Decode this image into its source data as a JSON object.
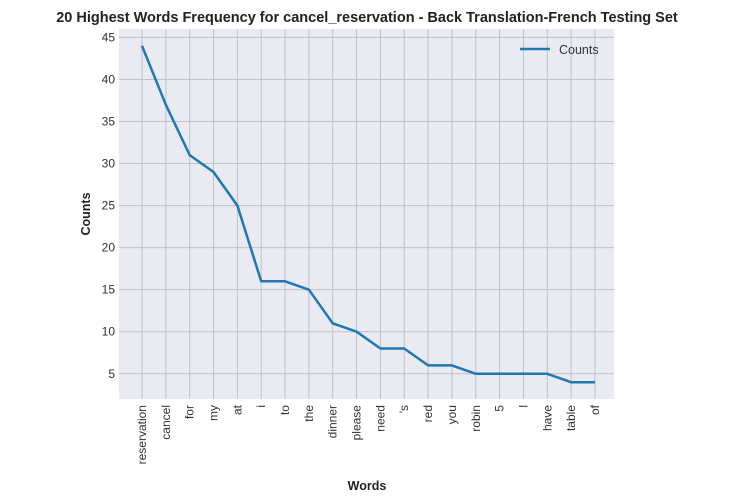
{
  "chart_data": {
    "type": "line",
    "title": "20 Highest Words Frequency for cancel_reservation - Back Translation-French Testing Set",
    "xlabel": "Words",
    "ylabel": "Counts",
    "categories": [
      "reservation",
      "cancel",
      "for",
      "my",
      "at",
      "i",
      "to",
      "the",
      "dinner",
      "please",
      "need",
      "'s",
      "red",
      "you",
      "robin",
      "5",
      "l",
      "have",
      "table",
      "of"
    ],
    "series": [
      {
        "name": "Counts",
        "values": [
          44,
          37,
          31,
          29,
          25,
          16,
          16,
          15,
          11,
          10,
          8,
          8,
          6,
          6,
          5,
          5,
          5,
          5,
          4,
          4
        ],
        "color": "#1f77b4"
      }
    ],
    "yticks": [
      5,
      10,
      15,
      20,
      25,
      30,
      35,
      40,
      45
    ],
    "ylim": [
      2,
      46
    ],
    "grid": true,
    "legend_position": "top-right",
    "plot_background": "#eaeaf2",
    "grid_color": "#c0c0c8"
  }
}
